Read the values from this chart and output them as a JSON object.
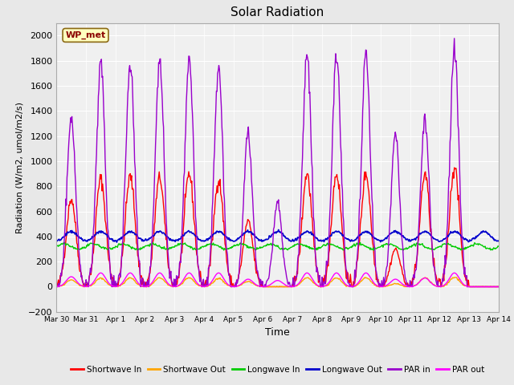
{
  "title": "Solar Radiation",
  "xlabel": "Time",
  "ylabel": "Radiation (W/m2, umol/m2/s)",
  "ylim": [
    -200,
    2100
  ],
  "yticks": [
    -200,
    0,
    200,
    400,
    600,
    800,
    1000,
    1200,
    1400,
    1600,
    1800,
    2000
  ],
  "bg_color": "#e8e8e8",
  "plot_bg_color": "#f0f0f0",
  "annotation_text": "WP_met",
  "annotation_color": "#8b0000",
  "annotation_bg": "#ffffc0",
  "series": {
    "shortwave_in": {
      "color": "#ff0000",
      "label": "Shortwave In",
      "lw": 1.0
    },
    "shortwave_out": {
      "color": "#ffa500",
      "label": "Shortwave Out",
      "lw": 1.0
    },
    "longwave_in": {
      "color": "#00cc00",
      "label": "Longwave In",
      "lw": 1.0
    },
    "longwave_out": {
      "color": "#0000cc",
      "label": "Longwave Out",
      "lw": 1.2
    },
    "par_in": {
      "color": "#9900cc",
      "label": "PAR in",
      "lw": 1.0
    },
    "par_out": {
      "color": "#ff00ff",
      "label": "PAR out",
      "lw": 1.0
    }
  },
  "n_days": 15,
  "points_per_day": 48,
  "sw_scale": [
    700,
    860,
    880,
    870,
    900,
    850,
    520,
    0,
    900,
    900,
    900,
    300,
    900,
    950,
    0
  ],
  "par_scale": [
    1350,
    1780,
    1780,
    1800,
    1800,
    1750,
    1220,
    670,
    1860,
    1840,
    1850,
    1200,
    1340,
    1900,
    0
  ],
  "par_out_scale": [
    80,
    110,
    110,
    110,
    110,
    110,
    60,
    50,
    110,
    110,
    110,
    60,
    70,
    110,
    0
  ]
}
